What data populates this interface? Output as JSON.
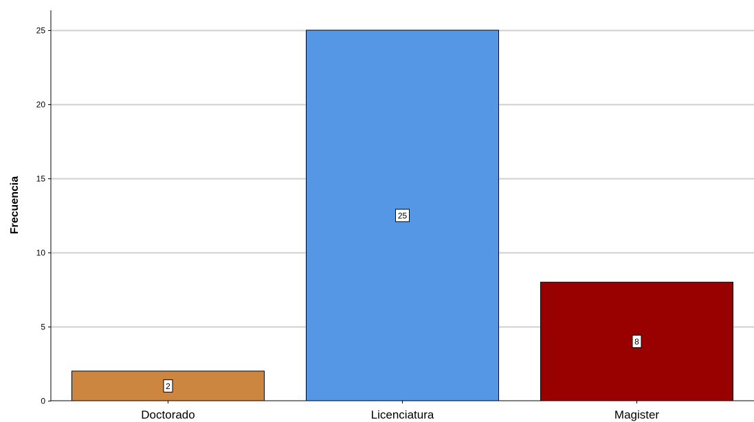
{
  "chart_data": {
    "type": "bar",
    "title": "",
    "xlabel": "",
    "ylabel": "Frecuencia",
    "categories": [
      "Doctorado",
      "Licenciatura",
      "Magister"
    ],
    "values": [
      2,
      25,
      8
    ],
    "data_labels": [
      "2",
      "25",
      "8"
    ],
    "bar_colors": [
      "#CD8640",
      "#5597E5",
      "#990000"
    ],
    "ylim": [
      0,
      25
    ],
    "yticks": [
      0,
      5,
      10,
      15,
      20,
      25
    ],
    "ytick_labels": [
      "0",
      "5",
      "10",
      "15",
      "20",
      "25"
    ],
    "grid": true,
    "legend": false
  }
}
